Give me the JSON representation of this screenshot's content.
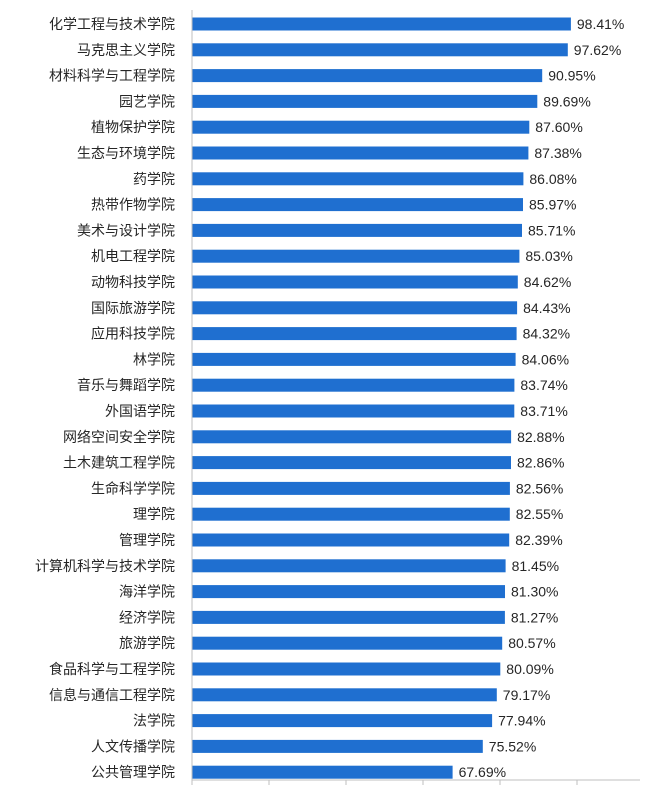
{
  "chart_data": {
    "type": "bar",
    "orientation": "horizontal",
    "title": "",
    "xlabel": "",
    "ylabel": "",
    "xlim": [
      0,
      100
    ],
    "grid": false,
    "legend": "none",
    "bar_color": "#1f6fd0",
    "categories": [
      "化学工程与技术学院",
      "马克思主义学院",
      "材料科学与工程学院",
      "园艺学院",
      "植物保护学院",
      "生态与环境学院",
      "药学院",
      "热带作物学院",
      "美术与设计学院",
      "机电工程学院",
      "动物科技学院",
      "国际旅游学院",
      "应用科技学院",
      "林学院",
      "音乐与舞蹈学院",
      "外国语学院",
      "网络空间安全学院",
      "土木建筑工程学院",
      "生命科学学院",
      "理学院",
      "管理学院",
      "计算机科学与技术学院",
      "海洋学院",
      "经济学院",
      "旅游学院",
      "食品科学与工程学院",
      "信息与通信工程学院",
      "法学院",
      "人文传播学院",
      "公共管理学院"
    ],
    "values": [
      98.41,
      97.62,
      90.95,
      89.69,
      87.6,
      87.38,
      86.08,
      85.97,
      85.71,
      85.03,
      84.62,
      84.43,
      84.32,
      84.06,
      83.74,
      83.71,
      82.88,
      82.86,
      82.56,
      82.55,
      82.39,
      81.45,
      81.3,
      81.27,
      80.57,
      80.09,
      79.17,
      77.94,
      75.52,
      67.69
    ],
    "value_labels": [
      "98.41%",
      "97.62%",
      "90.95%",
      "89.69%",
      "87.60%",
      "87.38%",
      "86.08%",
      "85.97%",
      "85.71%",
      "85.03%",
      "84.62%",
      "84.43%",
      "84.32%",
      "84.06%",
      "83.74%",
      "83.71%",
      "82.88%",
      "82.86%",
      "82.56%",
      "82.55%",
      "82.39%",
      "81.45%",
      "81.30%",
      "81.27%",
      "80.57%",
      "80.09%",
      "79.17%",
      "77.94%",
      "75.52%",
      "67.69%"
    ]
  }
}
